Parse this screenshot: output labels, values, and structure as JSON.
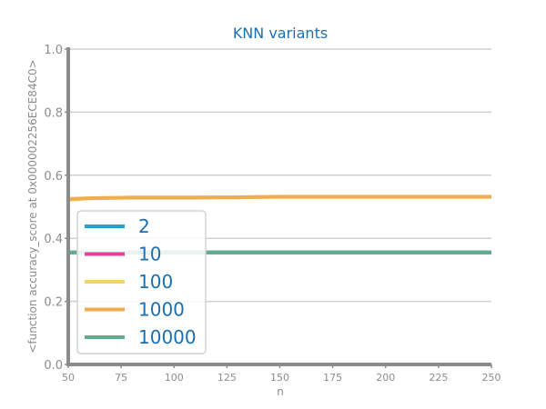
{
  "chart_data": {
    "type": "line",
    "title": "KNN variants",
    "xlabel": "n",
    "ylabel": "<function accuracy_score at 0x000002256ECE84C0>",
    "xlim": [
      50,
      250
    ],
    "ylim": [
      0.0,
      1.0
    ],
    "xticks": [
      "50",
      "75",
      "100",
      "125",
      "150",
      "175",
      "200",
      "225",
      "250"
    ],
    "yticks": [
      "0.0",
      "0.2",
      "0.4",
      "0.6",
      "0.8",
      "1.0"
    ],
    "grid": "horizontal",
    "legend_position": "lower-left",
    "x": [
      50,
      60,
      70,
      80,
      90,
      100,
      110,
      120,
      130,
      140,
      150,
      160,
      170,
      180,
      190,
      200,
      210,
      220,
      230,
      240,
      250
    ],
    "series": [
      {
        "name": "2",
        "color": "#2a9fd6",
        "values": [
          0.355,
          0.355,
          0.355,
          0.355,
          0.355,
          0.355,
          0.355,
          0.355,
          0.355,
          0.355,
          0.355,
          0.355,
          0.355,
          0.355,
          0.355,
          0.355,
          0.355,
          0.355,
          0.355,
          0.355,
          0.355
        ]
      },
      {
        "name": "10",
        "color": "#e0449a",
        "values": [
          0.355,
          0.355,
          0.355,
          0.355,
          0.355,
          0.355,
          0.355,
          0.355,
          0.355,
          0.355,
          0.355,
          0.355,
          0.355,
          0.355,
          0.355,
          0.355,
          0.355,
          0.355,
          0.355,
          0.355,
          0.355
        ]
      },
      {
        "name": "100",
        "color": "#f2d36b",
        "values": [
          0.522,
          0.527,
          0.528,
          0.53,
          0.53,
          0.53,
          0.53,
          0.53,
          0.53,
          0.531,
          0.531,
          0.531,
          0.531,
          0.531,
          0.531,
          0.531,
          0.531,
          0.531,
          0.531,
          0.531,
          0.531
        ]
      },
      {
        "name": "1000",
        "color": "#f0ad4e",
        "values": [
          0.525,
          0.527,
          0.528,
          0.529,
          0.529,
          0.529,
          0.529,
          0.53,
          0.53,
          0.531,
          0.532,
          0.532,
          0.532,
          0.532,
          0.532,
          0.532,
          0.532,
          0.532,
          0.532,
          0.532,
          0.532
        ]
      },
      {
        "name": "10000",
        "color": "#5cae8e",
        "values": [
          0.355,
          0.355,
          0.355,
          0.355,
          0.355,
          0.355,
          0.355,
          0.355,
          0.355,
          0.355,
          0.355,
          0.355,
          0.355,
          0.355,
          0.355,
          0.355,
          0.355,
          0.355,
          0.355,
          0.355,
          0.355
        ]
      }
    ]
  }
}
